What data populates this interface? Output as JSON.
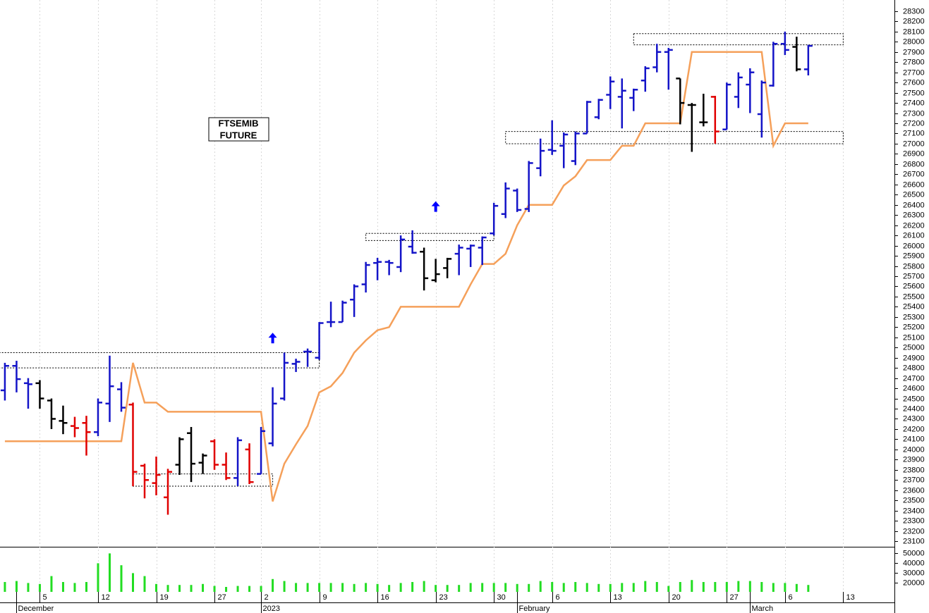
{
  "chart_data": {
    "type": "ohlc",
    "title": [
      "FTSEMIB",
      "FUTURE"
    ],
    "xlim": [
      -0.42,
      76.4
    ],
    "ylim": [
      23045,
      28410
    ],
    "yticks": [
      23100,
      23200,
      23300,
      23400,
      23500,
      23600,
      23700,
      23800,
      23900,
      24000,
      24100,
      24200,
      24300,
      24400,
      24500,
      24600,
      24700,
      24800,
      24900,
      25000,
      25100,
      25200,
      25300,
      25400,
      25500,
      25600,
      25700,
      25800,
      25900,
      26000,
      26100,
      26200,
      26300,
      26400,
      26500,
      26600,
      26700,
      26800,
      26900,
      27000,
      27100,
      27200,
      27300,
      27400,
      27500,
      27600,
      27700,
      27800,
      27900,
      28000,
      28100,
      28200,
      28300
    ],
    "xticks": [
      {
        "value": 3,
        "label": "5"
      },
      {
        "value": 8,
        "label": "12"
      },
      {
        "value": 13,
        "label": "19"
      },
      {
        "value": 18,
        "label": "27"
      },
      {
        "value": 22,
        "label": "2"
      },
      {
        "value": 27,
        "label": "9"
      },
      {
        "value": 32,
        "label": "16"
      },
      {
        "value": 37,
        "label": "23"
      },
      {
        "value": 42,
        "label": "30"
      },
      {
        "value": 47,
        "label": "6"
      },
      {
        "value": 52,
        "label": "13"
      },
      {
        "value": 57,
        "label": "20"
      },
      {
        "value": 62,
        "label": "27"
      },
      {
        "value": 67,
        "label": "6"
      },
      {
        "value": 72,
        "label": "13"
      }
    ],
    "month_ticks": [
      {
        "value": 1,
        "label": "December"
      },
      {
        "value": 22,
        "label": "2023"
      },
      {
        "value": 44,
        "label": "February"
      },
      {
        "value": 64,
        "label": "March"
      }
    ],
    "grid": true,
    "open": [
      24580,
      24820,
      24650,
      24650,
      24480,
      24280,
      24230,
      24260,
      24170,
      24450,
      24590,
      24440,
      23840,
      23670,
      23530,
      23850,
      24160,
      23870,
      24080,
      23850,
      23720,
      24000,
      23760,
      24060,
      24500,
      24840,
      24960,
      24900,
      25250,
      25250,
      25470,
      25620,
      25830,
      25840,
      25790,
      25990,
      25940,
      25660,
      25780,
      25920,
      25970,
      25980,
      26120,
      26310,
      26540,
      26360,
      26760,
      26940,
      26980,
      26830,
      27100,
      27260,
      27480,
      27460,
      27450,
      27620,
      27750,
      27900,
      27640,
      27380,
      27210,
      27460,
      27140,
      27460,
      27580,
      27290,
      27570,
      27980,
      27950,
      27730
    ],
    "high": [
      24850,
      24870,
      24700,
      24680,
      24500,
      24430,
      24320,
      24330,
      24500,
      24920,
      24660,
      24460,
      23860,
      23930,
      23810,
      24120,
      24220,
      23960,
      24100,
      23970,
      24120,
      24060,
      24220,
      24610,
      24950,
      24890,
      24990,
      25250,
      25450,
      25460,
      25620,
      25840,
      25880,
      25860,
      26100,
      26150,
      25980,
      25870,
      25880,
      26010,
      26010,
      26090,
      26420,
      26620,
      26560,
      26830,
      27050,
      27230,
      27110,
      27120,
      27420,
      27440,
      27660,
      27640,
      27540,
      27760,
      27980,
      27940,
      27640,
      27400,
      27490,
      27470,
      27600,
      27700,
      27740,
      27620,
      28000,
      28100,
      28050,
      27970
    ],
    "low": [
      24480,
      24560,
      24400,
      24400,
      24200,
      24150,
      24120,
      23940,
      24130,
      24270,
      24370,
      23640,
      23520,
      23550,
      23360,
      23750,
      23680,
      23760,
      23800,
      23700,
      23640,
      23660,
      23760,
      24030,
      24480,
      24760,
      24810,
      24880,
      25200,
      25250,
      25300,
      25540,
      25660,
      25710,
      25740,
      25920,
      25560,
      25640,
      25680,
      25710,
      25790,
      25810,
      26100,
      26270,
      26330,
      26330,
      26680,
      26890,
      26760,
      26790,
      27100,
      27240,
      27340,
      27150,
      27320,
      27510,
      27700,
      27530,
      27190,
      26920,
      27170,
      27000,
      27140,
      27350,
      27300,
      27060,
      27560,
      27870,
      27710,
      27670
    ],
    "close": [
      24820,
      24690,
      24640,
      24500,
      24300,
      24260,
      24210,
      24170,
      24460,
      24620,
      24410,
      23780,
      23700,
      23750,
      23780,
      24100,
      23860,
      23940,
      23850,
      23720,
      24090,
      23680,
      24180,
      24450,
      24850,
      24860,
      24960,
      25240,
      25250,
      25440,
      25600,
      25810,
      25840,
      25830,
      26060,
      25930,
      25680,
      25720,
      25870,
      25980,
      26000,
      26080,
      26390,
      26560,
      26350,
      26810,
      26930,
      26930,
      27090,
      27100,
      27410,
      27430,
      27610,
      27520,
      27530,
      27740,
      27900,
      27920,
      27400,
      27380,
      27210,
      27120,
      27580,
      27650,
      27700,
      27600,
      27980,
      27920,
      27730,
      27960
    ],
    "colors": [
      "#1414c8",
      "#1414c8",
      "#1414c8",
      "#000000",
      "#000000",
      "#000000",
      "#e00000",
      "#e00000",
      "#1414c8",
      "#1414c8",
      "#1414c8",
      "#e00000",
      "#e00000",
      "#e00000",
      "#e00000",
      "#000000",
      "#000000",
      "#000000",
      "#e00000",
      "#e00000",
      "#1414c8",
      "#e00000",
      "#1414c8",
      "#1414c8",
      "#1414c8",
      "#1414c8",
      "#1414c8",
      "#1414c8",
      "#1414c8",
      "#1414c8",
      "#1414c8",
      "#1414c8",
      "#1414c8",
      "#1414c8",
      "#1414c8",
      "#1414c8",
      "#000000",
      "#000000",
      "#000000",
      "#1414c8",
      "#1414c8",
      "#1414c8",
      "#1414c8",
      "#1414c8",
      "#1414c8",
      "#1414c8",
      "#1414c8",
      "#1414c8",
      "#1414c8",
      "#1414c8",
      "#1414c8",
      "#1414c8",
      "#1414c8",
      "#1414c8",
      "#1414c8",
      "#1414c8",
      "#1414c8",
      "#1414c8",
      "#000000",
      "#000000",
      "#000000",
      "#e00000",
      "#1414c8",
      "#1414c8",
      "#1414c8",
      "#1414c8",
      "#1414c8",
      "#1414c8",
      "#000000",
      "#1414c8"
    ],
    "stop_line": {
      "color": "#f5a05a",
      "values": [
        24080,
        24080,
        24080,
        24080,
        24080,
        24080,
        24080,
        24080,
        24080,
        24080,
        24080,
        24850,
        24460,
        24460,
        24370,
        24370,
        24370,
        24370,
        24370,
        24370,
        24370,
        24370,
        24370,
        23490,
        23860,
        24050,
        24230,
        24560,
        24620,
        24750,
        24950,
        25070,
        25170,
        25200,
        25400,
        25400,
        25400,
        25400,
        25400,
        25400,
        25620,
        25820,
        25820,
        25920,
        26200,
        26400,
        26400,
        26400,
        26590,
        26680,
        26840,
        26840,
        26840,
        26980,
        26980,
        27200,
        27200,
        27200,
        27200,
        27900,
        27900,
        27900,
        27900,
        27900,
        27900,
        27900,
        26980,
        27200,
        27200,
        27200
      ]
    },
    "zones": [
      {
        "from": -0.5,
        "to": 27,
        "high": 24950,
        "low": 24800
      },
      {
        "from": 11,
        "to": 23,
        "high": 23760,
        "low": 23640
      },
      {
        "from": 31,
        "to": 42,
        "high": 26120,
        "low": 26050
      },
      {
        "from": 43,
        "to": 72,
        "high": 27120,
        "low": 27000
      },
      {
        "from": 54,
        "to": 72,
        "high": 28080,
        "low": 27970
      }
    ],
    "signals": [
      {
        "x": 23,
        "y": 25090,
        "color": "#0000ff"
      },
      {
        "x": 37,
        "y": 26380,
        "color": "#0000ff"
      }
    ],
    "volume": {
      "color": "#22dd22",
      "ylim": [
        11000,
        56000
      ],
      "yticks": [
        20000,
        30000,
        40000,
        50000
      ],
      "values": [
        21000,
        22000,
        20000,
        19000,
        27000,
        21000,
        20000,
        21000,
        40000,
        50000,
        38000,
        30000,
        27000,
        19000,
        18000,
        18000,
        18000,
        19000,
        17000,
        16000,
        17000,
        17000,
        17000,
        24000,
        22000,
        20000,
        20000,
        20000,
        20000,
        20000,
        19000,
        20000,
        19000,
        18000,
        20000,
        21000,
        22000,
        18000,
        18000,
        18000,
        20000,
        20000,
        20000,
        20000,
        19000,
        19000,
        22000,
        21000,
        20000,
        21000,
        20000,
        19000,
        19000,
        20000,
        20000,
        22000,
        21000,
        17000,
        21000,
        23000,
        21000,
        21000,
        21000,
        22000,
        22000,
        21000,
        20000,
        20000,
        19000,
        18000
      ]
    }
  }
}
